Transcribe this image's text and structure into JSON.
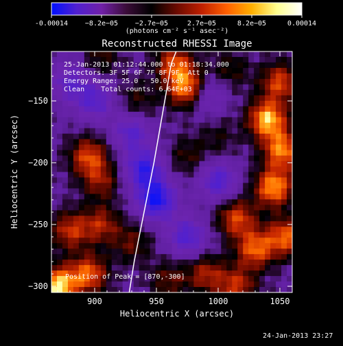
{
  "colorbar": {
    "ticks": [
      "-0.00014",
      "−8.2e−05",
      "−2.7e−05",
      "2.7e−05",
      "8.2e−05",
      "0.00014"
    ],
    "unit_label": "(photons cm⁻² s⁻¹ asec⁻²)",
    "colors": [
      "#0010ff",
      "#5020d0",
      "#7020a8",
      "#3a0c38",
      "#000000",
      "#6a0a00",
      "#c02000",
      "#ff6000",
      "#ffb000",
      "#ffff90",
      "#ffffff"
    ]
  },
  "info": {
    "line1": "25-Jan-2013 01:12:44.000 to 01:18:34.000",
    "line2": "Detectors: 3F 5F 6F 7F 8F 9F, Att 0",
    "line3": "Energy Range: 25.0 - 50.0 keV",
    "line4": "Clean    Total counts: 6.64E+03",
    "peak": "Position of Peak = [870,-300]"
  },
  "footer": {
    "date": "24-Jan-2013 23:27"
  },
  "chart_data": {
    "type": "heatmap",
    "title": "Reconstructed RHESSI Image",
    "xlabel": "Heliocentric X (arcsec)",
    "ylabel": "Heliocentric Y (arcsec)",
    "xlim": [
      865,
      1060
    ],
    "ylim": [
      -305,
      -110
    ],
    "xticks": [
      900,
      950,
      1000,
      1050
    ],
    "yticks": [
      -150,
      -200,
      -250,
      -300
    ],
    "colorbar_range": [
      -0.00014,
      0.00014
    ],
    "limb_curve": {
      "x": [
        928,
        932,
        940,
        948,
        955,
        962,
        966
      ],
      "y": [
        -305,
        -280,
        -240,
        -200,
        -160,
        -120,
        -110
      ]
    },
    "sources": [
      {
        "x": 870,
        "y": -300,
        "value": 0.00014
      },
      {
        "x": 895,
        "y": -290,
        "value": 0.0001
      },
      {
        "x": 880,
        "y": -255,
        "value": 8e-05
      },
      {
        "x": 905,
        "y": -250,
        "value": 7e-05
      },
      {
        "x": 895,
        "y": -195,
        "value": 9e-05
      },
      {
        "x": 905,
        "y": -215,
        "value": 6e-05
      },
      {
        "x": 975,
        "y": -140,
        "value": 0.00012
      },
      {
        "x": 965,
        "y": -120,
        "value": 9e-05
      },
      {
        "x": 1050,
        "y": -135,
        "value": 9e-05
      },
      {
        "x": 1040,
        "y": -165,
        "value": 0.00013
      },
      {
        "x": 1052,
        "y": -190,
        "value": 0.00011
      },
      {
        "x": 1045,
        "y": -220,
        "value": 0.00012
      },
      {
        "x": 1015,
        "y": -245,
        "value": 9e-05
      },
      {
        "x": 1030,
        "y": -270,
        "value": 0.0001
      },
      {
        "x": 990,
        "y": -290,
        "value": 7e-05
      },
      {
        "x": 1015,
        "y": -300,
        "value": 8e-05
      },
      {
        "x": 1055,
        "y": -260,
        "value": 0.0001
      },
      {
        "x": 935,
        "y": -150,
        "value": 4e-05
      },
      {
        "x": 905,
        "y": -115,
        "value": 4e-05
      },
      {
        "x": 1010,
        "y": -125,
        "value": 4e-05
      },
      {
        "x": 975,
        "y": -195,
        "value": 4e-05
      },
      {
        "x": 930,
        "y": -265,
        "value": 5e-05
      },
      {
        "x": 960,
        "y": -295,
        "value": 5e-05
      },
      {
        "x": 1000,
        "y": -180,
        "value": 3e-05
      },
      {
        "x": 950,
        "y": -230,
        "value": -0.00012
      },
      {
        "x": 940,
        "y": -205,
        "value": -0.0001
      },
      {
        "x": 900,
        "y": -150,
        "value": -7e-05
      },
      {
        "x": 975,
        "y": -260,
        "value": -8e-05
      },
      {
        "x": 1000,
        "y": -215,
        "value": -8e-05
      },
      {
        "x": 930,
        "y": -175,
        "value": -7e-05
      },
      {
        "x": 880,
        "y": -135,
        "value": -6e-05
      },
      {
        "x": 990,
        "y": -145,
        "value": -6e-05
      }
    ]
  }
}
